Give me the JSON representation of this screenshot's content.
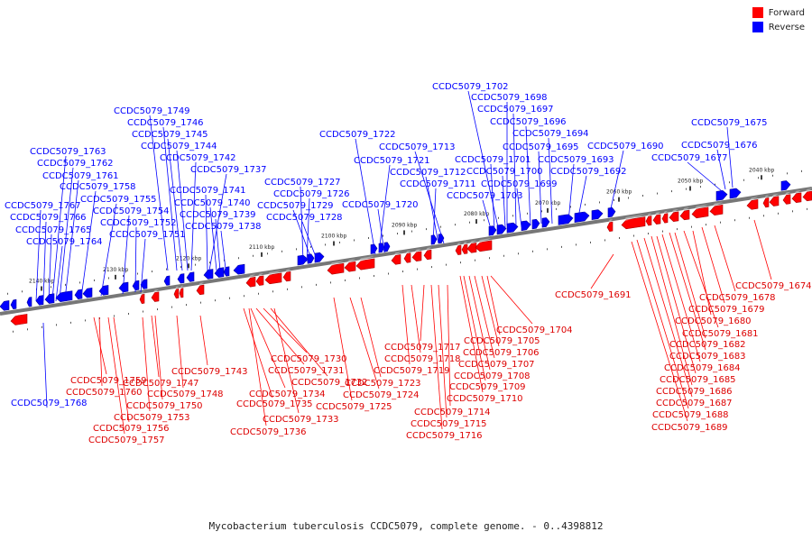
{
  "legend": {
    "forward_label": "Forward",
    "reverse_label": "Reverse",
    "forward_color": "#ff0000",
    "reverse_color": "#0000ff"
  },
  "caption": "Mycobacterium tuberculosis CCDC5079, complete genome. - 0..4398812",
  "ticks": [
    "2140 kbp",
    "2130 kbp",
    "2120 kbp",
    "2110 kbp",
    "2100 kbp",
    "2090 kbp",
    "2080 kbp",
    "2070 kbp",
    "2060 kbp",
    "2050 kbp",
    "2040 kbp"
  ],
  "reverse_labels": [
    "CCDC5079_1749",
    "CCDC5079_1746",
    "CCDC5079_1745",
    "CCDC5079_1744",
    "CCDC5079_1742",
    "CCDC5079_1737",
    "CCDC5079_1763",
    "CCDC5079_1762",
    "CCDC5079_1761",
    "CCDC5079_1758",
    "CCDC5079_1755",
    "CCDC5079_1754",
    "CCDC5079_1752",
    "CCDC5079_1751",
    "CCDC5079_1767",
    "CCDC5079_1766",
    "CCDC5079_1765",
    "CCDC5079_1764",
    "CCDC5079_1741",
    "CCDC5079_1740",
    "CCDC5079_1739",
    "CCDC5079_1738",
    "CCDC5079_1722",
    "CCDC5079_1727",
    "CCDC5079_1726",
    "CCDC5079_1729",
    "CCDC5079_1728",
    "CCDC5079_1721",
    "CCDC5079_1720",
    "CCDC5079_1713",
    "CCDC5079_1712",
    "CCDC5079_1711",
    "CCDC5079_1702",
    "CCDC5079_1698",
    "CCDC5079_1697",
    "CCDC5079_1696",
    "CCDC5079_1694",
    "CCDC5079_1695",
    "CCDC5079_1701",
    "CCDC5079_1700",
    "CCDC5079_1699",
    "CCDC5079_1703",
    "CCDC5079_1693",
    "CCDC5079_1692",
    "CCDC5079_1690",
    "CCDC5079_1675",
    "CCDC5079_1676",
    "CCDC5079_1677",
    "CCDC5079_1768"
  ],
  "forward_labels": [
    "CCDC5079_1743",
    "CCDC5079_1759",
    "CCDC5079_1747",
    "CCDC5079_1760",
    "CCDC5079_1748",
    "CCDC5079_1750",
    "CCDC5079_1753",
    "CCDC5079_1756",
    "CCDC5079_1757",
    "CCDC5079_1730",
    "CCDC5079_1731",
    "CCDC5079_1732",
    "CCDC5079_1734",
    "CCDC5079_1735",
    "CCDC5079_1733",
    "CCDC5079_1736",
    "CCDC5079_1723",
    "CCDC5079_1724",
    "CCDC5079_1725",
    "CCDC5079_1717",
    "CCDC5079_1718",
    "CCDC5079_1719",
    "CCDC5079_1714",
    "CCDC5079_1715",
    "CCDC5079_1716",
    "CCDC5079_1704",
    "CCDC5079_1705",
    "CCDC5079_1706",
    "CCDC5079_1707",
    "CCDC5079_1708",
    "CCDC5079_1709",
    "CCDC5079_1710",
    "CCDC5079_1691",
    "CCDC5079_1674",
    "CCDC5079_1678",
    "CCDC5079_1679",
    "CCDC5079_1680",
    "CCDC5079_1681",
    "CCDC5079_1682",
    "CCDC5079_1683",
    "CCDC5079_1684",
    "CCDC5079_1685",
    "CCDC5079_1686",
    "CCDC5079_1687",
    "CCDC5079_1688",
    "CCDC5079_1689"
  ]
}
